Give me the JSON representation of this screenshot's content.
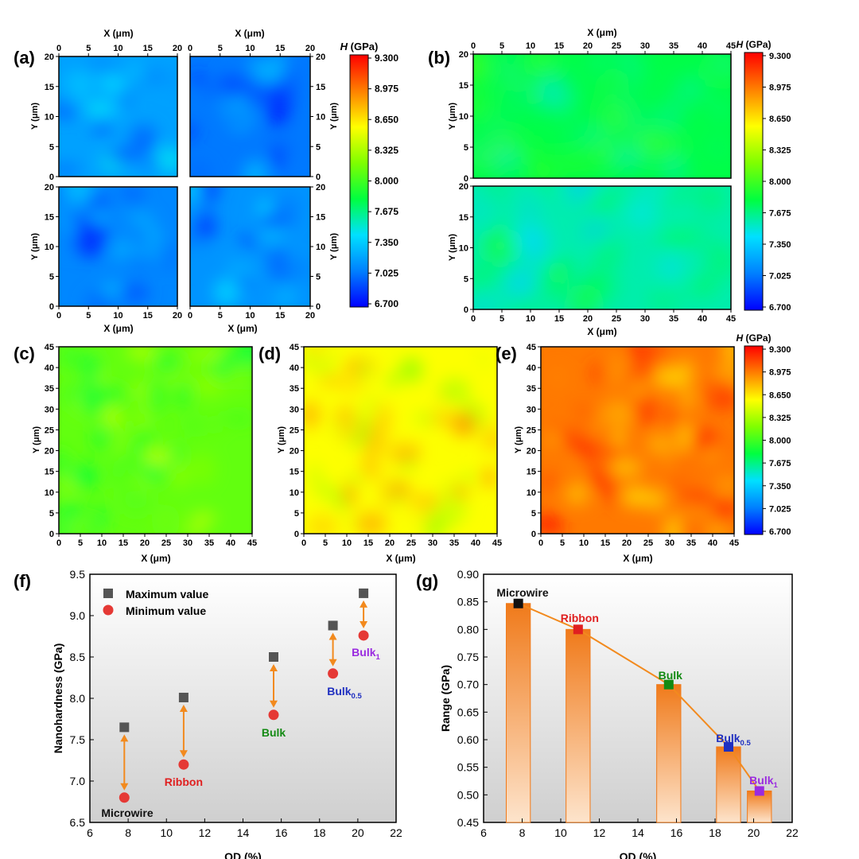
{
  "colorscale": {
    "title_italic": "H",
    "title_unit": " (GPa)",
    "ticks": [
      "9.300",
      "8.975",
      "8.650",
      "8.325",
      "8.000",
      "7.675",
      "7.350",
      "7.025",
      "6.700"
    ],
    "colors": [
      "#0000ff",
      "#0080ff",
      "#00e0ff",
      "#00ff40",
      "#7fff00",
      "#ffff00",
      "#ff8000",
      "#ff0000"
    ]
  },
  "maps": {
    "a": {
      "panel_label": "(a)",
      "x_title": "X (μm)",
      "y_title": "Y (μm)",
      "x_ticks": [
        "0",
        "5",
        "10",
        "15",
        "20"
      ],
      "y_ticks": [
        "0",
        "5",
        "10",
        "15",
        "20"
      ],
      "level_GPa": [
        7.2,
        7.05,
        7.1,
        7.15
      ]
    },
    "b": {
      "panel_label": "(b)",
      "x_title": "X (μm)",
      "y_title": "Y (μm)",
      "x_ticks": [
        "0",
        "5",
        "10",
        "15",
        "20",
        "25",
        "30",
        "35",
        "40",
        "45"
      ],
      "y_ticks": [
        "0",
        "5",
        "10",
        "15",
        "20"
      ],
      "level_GPa": [
        7.8,
        7.6
      ]
    },
    "c": {
      "panel_label": "(c)",
      "x_title": "X (μm)",
      "y_title": "Y (μm)",
      "ticks": [
        "0",
        "5",
        "10",
        "15",
        "20",
        "25",
        "30",
        "35",
        "40",
        "45"
      ],
      "level_GPa": 8.1
    },
    "d": {
      "panel_label": "(d)",
      "x_title": "X (μm)",
      "y_title": "Y (μm)",
      "ticks": [
        "0",
        "5",
        "10",
        "15",
        "20",
        "25",
        "30",
        "35",
        "40",
        "45"
      ],
      "level_GPa": 8.55
    },
    "e": {
      "panel_label": "(e)",
      "x_title": "X (μm)",
      "y_title": "Y (μm)",
      "ticks": [
        "0",
        "5",
        "10",
        "15",
        "20",
        "25",
        "30",
        "35",
        "40",
        "45"
      ],
      "level_GPa": 8.95
    }
  },
  "chart_data": [
    {
      "id": "f",
      "panel_label": "(f)",
      "type": "scatter",
      "xlabel": "OD (%)",
      "ylabel": "Nanohardness (GPa)",
      "xlim": [
        6,
        22
      ],
      "ylim": [
        6.5,
        9.5
      ],
      "xticks": [
        6,
        8,
        10,
        12,
        14,
        16,
        18,
        20,
        22
      ],
      "yticks": [
        6.5,
        7.0,
        7.5,
        8.0,
        8.5,
        9.0,
        9.5
      ],
      "legend": {
        "position": "top-left",
        "entries": [
          "Maximum value",
          "Minimum value"
        ]
      },
      "series": [
        {
          "name": "Maximum value",
          "marker": "square",
          "color": "#555555",
          "x": [
            7.8,
            10.9,
            15.6,
            18.7,
            20.3
          ],
          "y": [
            7.65,
            8.01,
            8.5,
            8.88,
            9.27
          ]
        },
        {
          "name": "Minimum value",
          "marker": "circle",
          "color": "#e53935",
          "x": [
            7.8,
            10.9,
            15.6,
            18.7,
            20.3
          ],
          "y": [
            6.8,
            7.2,
            7.8,
            8.3,
            8.76
          ]
        }
      ],
      "annotations": [
        {
          "label": "Microwire",
          "sub": "",
          "color": "#111111"
        },
        {
          "label": "Ribbon",
          "sub": "",
          "color": "#e02020"
        },
        {
          "label": "Bulk",
          "sub": "",
          "color": "#138a13"
        },
        {
          "label": "Bulk",
          "sub": "0.5",
          "color": "#1f2fc0"
        },
        {
          "label": "Bulk",
          "sub": "1",
          "color": "#9a2be0"
        }
      ]
    },
    {
      "id": "g",
      "panel_label": "(g)",
      "type": "bar",
      "xlabel": "OD (%)",
      "ylabel": "Range (GPa)",
      "xlim": [
        6,
        22
      ],
      "ylim": [
        0.45,
        0.9
      ],
      "xticks": [
        6,
        8,
        10,
        12,
        14,
        16,
        18,
        20,
        22
      ],
      "yticks": [
        0.45,
        0.5,
        0.55,
        0.6,
        0.65,
        0.7,
        0.75,
        0.8,
        0.85,
        0.9
      ],
      "x": [
        7.8,
        10.9,
        15.6,
        18.7,
        20.3
      ],
      "values": [
        0.847,
        0.8,
        0.7,
        0.587,
        0.507
      ],
      "point_colors": [
        "#111111",
        "#e02020",
        "#138a13",
        "#1f2fc0",
        "#9a2be0"
      ],
      "annotations": [
        {
          "label": "Microwire",
          "sub": "",
          "color": "#111111"
        },
        {
          "label": "Ribbon",
          "sub": "",
          "color": "#e02020"
        },
        {
          "label": "Bulk",
          "sub": "",
          "color": "#138a13"
        },
        {
          "label": "Bulk",
          "sub": "0.5",
          "color": "#1f2fc0"
        },
        {
          "label": "Bulk",
          "sub": "1",
          "color": "#9a2be0"
        }
      ]
    }
  ]
}
